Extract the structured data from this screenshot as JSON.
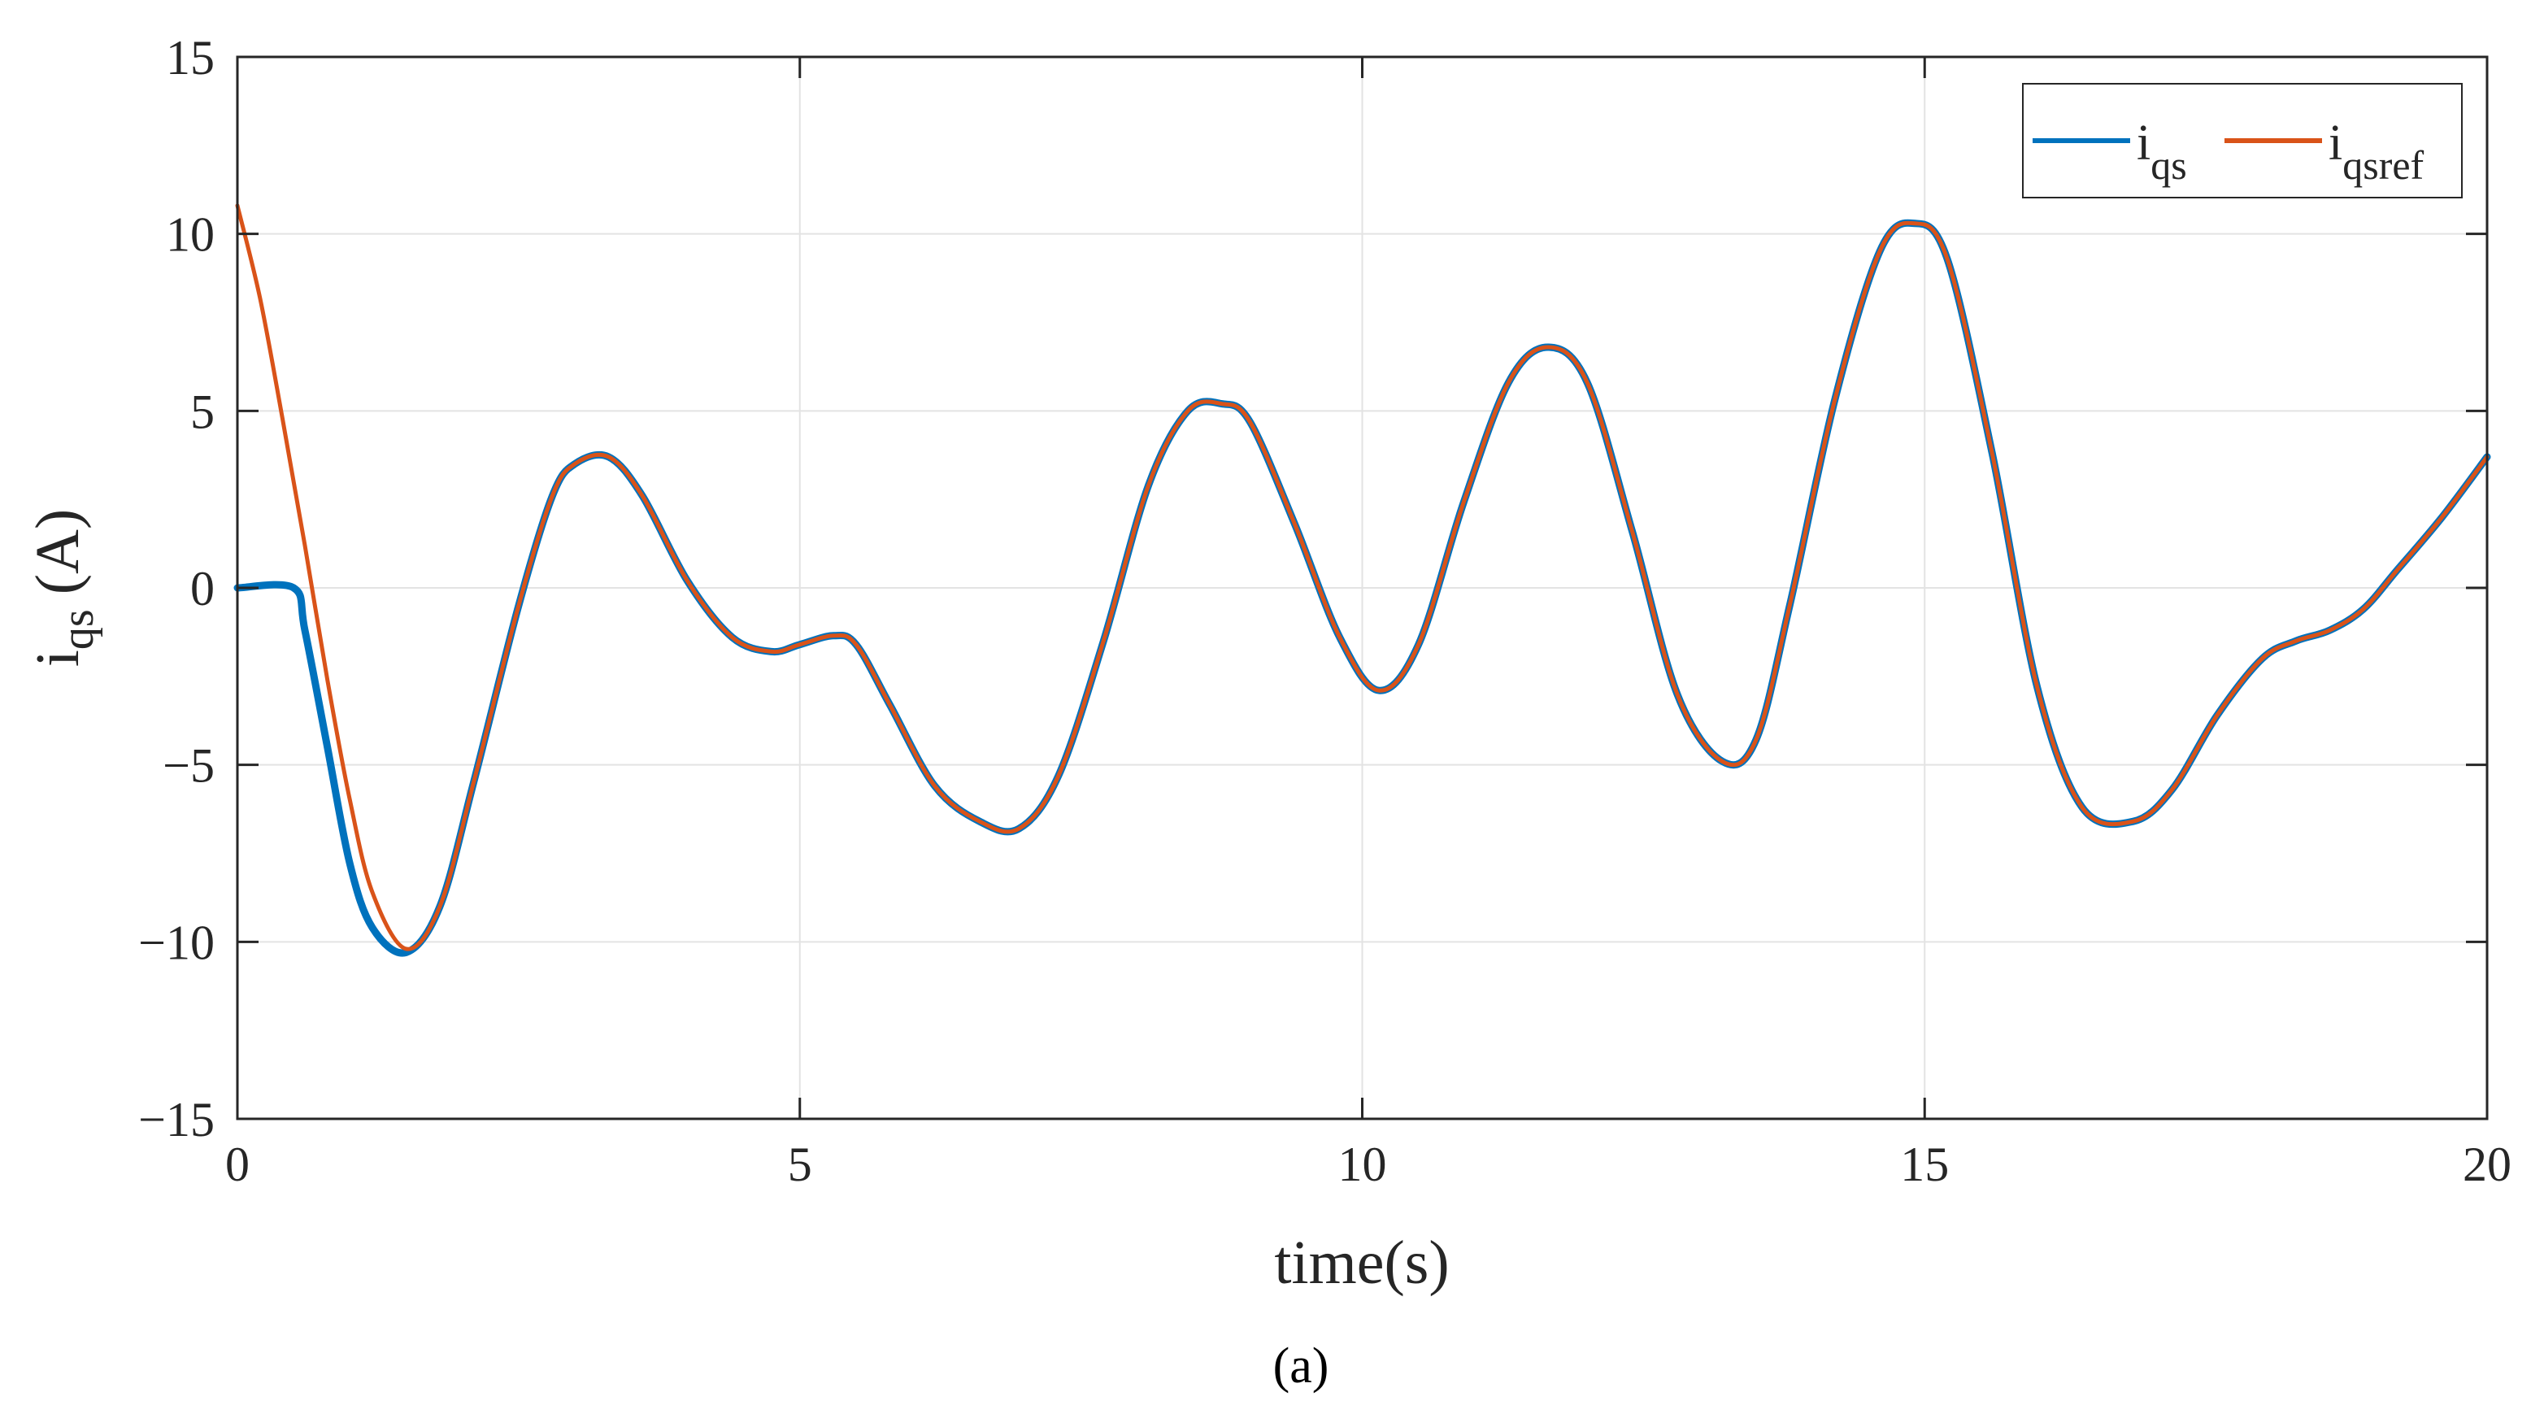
{
  "chart_data": {
    "type": "line",
    "xlabel": "time(s)",
    "ylabel": {
      "main": "i",
      "sub": "qs",
      "unit": "(A)"
    },
    "xlim": [
      0,
      20
    ],
    "ylim": [
      -15,
      15
    ],
    "xticks": [
      0,
      5,
      10,
      15,
      20
    ],
    "xtick_labels": [
      "0",
      "5",
      "10",
      "15",
      "20"
    ],
    "yticks": [
      -15,
      -10,
      -5,
      0,
      5,
      10,
      15
    ],
    "ytick_labels": [
      "−15",
      "−10",
      "−5",
      "0",
      "5",
      "10",
      "15"
    ],
    "grid": true,
    "legend_position": "top-right",
    "series": [
      {
        "name": "i_qs",
        "legend": {
          "main": "i",
          "sub": "qs"
        },
        "color": "#0072BD",
        "x": [
          0,
          0.5,
          0.6,
          0.8,
          1.0,
          1.2,
          1.5,
          1.8,
          2.1,
          2.5,
          2.8,
          3.0,
          3.3,
          3.6,
          4.0,
          4.4,
          4.75,
          5.0,
          5.3,
          5.5,
          5.8,
          6.2,
          6.6,
          6.95,
          7.3,
          7.7,
          8.1,
          8.45,
          8.75,
          9.0,
          9.4,
          9.8,
          10.15,
          10.5,
          10.9,
          11.3,
          11.65,
          12.0,
          12.4,
          12.8,
          13.2,
          13.5,
          13.8,
          14.2,
          14.6,
          14.9,
          15.2,
          15.6,
          16.0,
          16.4,
          16.85,
          17.2,
          17.6,
          18.0,
          18.3,
          18.6,
          18.9,
          19.2,
          19.6,
          20.0
        ],
        "y": [
          0,
          0,
          -1.2,
          -4.5,
          -7.8,
          -9.6,
          -10.3,
          -9.0,
          -5.5,
          -0.5,
          2.6,
          3.5,
          3.7,
          2.6,
          0.2,
          -1.4,
          -1.8,
          -1.6,
          -1.35,
          -1.6,
          -3.3,
          -5.6,
          -6.6,
          -6.8,
          -5.3,
          -1.5,
          2.9,
          5.0,
          5.2,
          4.7,
          1.8,
          -1.4,
          -2.9,
          -1.6,
          2.4,
          5.8,
          6.8,
          5.8,
          1.6,
          -3.0,
          -4.9,
          -4.3,
          -0.5,
          5.3,
          9.5,
          10.3,
          9.3,
          3.8,
          -2.8,
          -6.2,
          -6.6,
          -5.7,
          -3.6,
          -2.0,
          -1.5,
          -1.2,
          -0.6,
          0.5,
          2.0,
          3.7
        ]
      },
      {
        "name": "i_qsref",
        "legend": {
          "main": "i",
          "sub": "qsref"
        },
        "color": "#D95319",
        "x": [
          0,
          0.2,
          0.4,
          0.6,
          0.8,
          1.0,
          1.2,
          1.5,
          1.8,
          2.1,
          2.5,
          2.8,
          3.0,
          3.3,
          3.6,
          4.0,
          4.4,
          4.75,
          5.0,
          5.3,
          5.5,
          5.8,
          6.2,
          6.6,
          6.95,
          7.3,
          7.7,
          8.1,
          8.45,
          8.75,
          9.0,
          9.4,
          9.8,
          10.15,
          10.5,
          10.9,
          11.3,
          11.65,
          12.0,
          12.4,
          12.8,
          13.2,
          13.5,
          13.8,
          14.2,
          14.6,
          14.9,
          15.2,
          15.6,
          16.0,
          16.4,
          16.85,
          17.2,
          17.6,
          18.0,
          18.3,
          18.6,
          18.9,
          19.2,
          19.6,
          20.0
        ],
        "y": [
          10.8,
          8.2,
          4.8,
          1.2,
          -2.6,
          -6.0,
          -8.6,
          -10.2,
          -9.0,
          -5.5,
          -0.5,
          2.6,
          3.5,
          3.7,
          2.6,
          0.2,
          -1.4,
          -1.8,
          -1.6,
          -1.35,
          -1.6,
          -3.3,
          -5.6,
          -6.6,
          -6.8,
          -5.3,
          -1.5,
          2.9,
          5.0,
          5.2,
          4.7,
          1.8,
          -1.4,
          -2.9,
          -1.6,
          2.4,
          5.8,
          6.8,
          5.8,
          1.6,
          -3.0,
          -4.9,
          -4.3,
          -0.5,
          5.3,
          9.5,
          10.3,
          9.3,
          3.8,
          -2.8,
          -6.2,
          -6.6,
          -5.7,
          -3.6,
          -2.0,
          -1.5,
          -1.2,
          -0.6,
          0.5,
          2.0,
          3.7
        ]
      }
    ],
    "caption": "(a)"
  }
}
